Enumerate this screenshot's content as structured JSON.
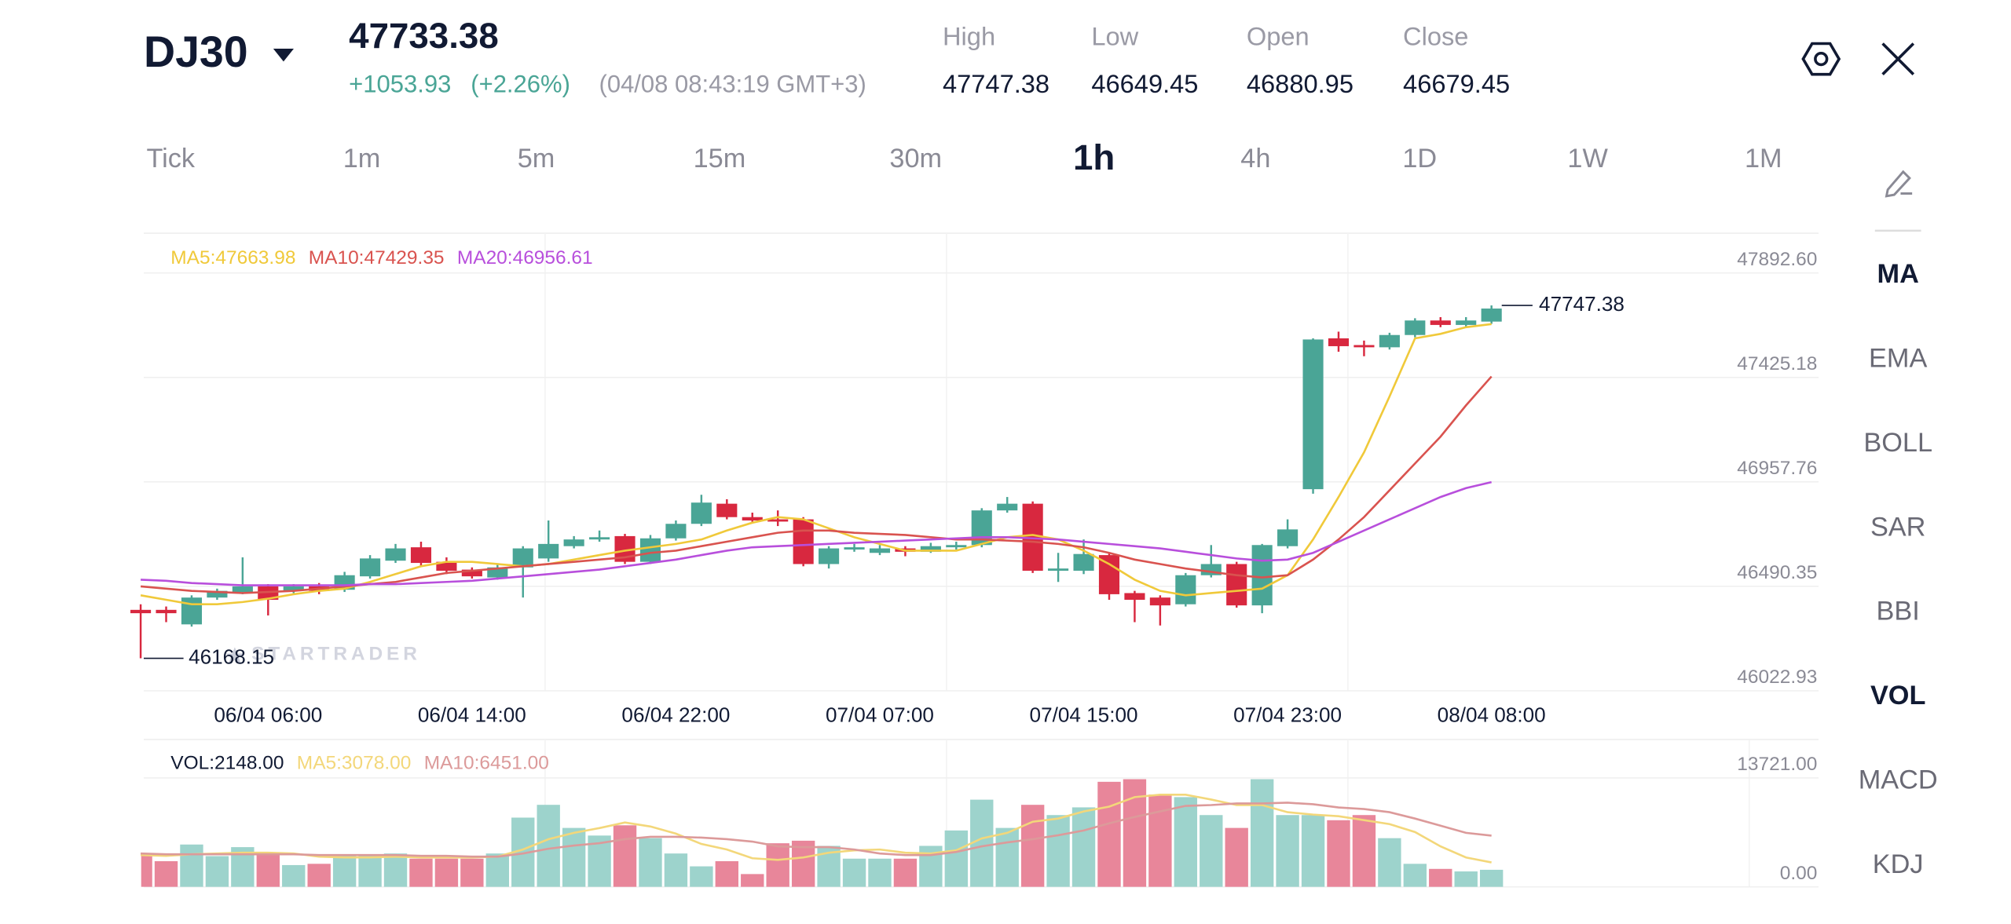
{
  "header": {
    "symbol": "DJ30",
    "price": "47733.38",
    "change": "+1053.93",
    "change_pct": "(+2.26%)",
    "timestamp": "(04/08 08:43:19 GMT+3)",
    "stats": [
      {
        "label": "High",
        "value": "47747.38"
      },
      {
        "label": "Low",
        "value": "46649.45"
      },
      {
        "label": "Open",
        "value": "46880.95"
      },
      {
        "label": "Close",
        "value": "46679.45"
      }
    ]
  },
  "timeframes": {
    "items": [
      "Tick",
      "1m",
      "5m",
      "15m",
      "30m",
      "1h",
      "4h",
      "1D",
      "1W",
      "1M"
    ],
    "active": "1h"
  },
  "indicators": {
    "items": [
      "MA",
      "EMA",
      "BOLL",
      "SAR",
      "BBI",
      "VOL",
      "MACD",
      "KDJ"
    ],
    "active": [
      "MA",
      "VOL"
    ]
  },
  "watermark": "STARTRADER",
  "chart_data": [
    {
      "type": "candlestick",
      "up_color": "#4aa596",
      "down_color": "#d8283f",
      "categories": [
        null,
        null,
        null,
        null,
        null,
        "06/04 06:00",
        null,
        null,
        null,
        null,
        null,
        null,
        null,
        "06/04 14:00",
        null,
        null,
        null,
        null,
        null,
        null,
        null,
        "06/04 22:00",
        null,
        null,
        null,
        null,
        null,
        null,
        null,
        "07/04 07:00",
        null,
        null,
        null,
        null,
        null,
        null,
        null,
        "07/04 15:00",
        null,
        null,
        null,
        null,
        null,
        null,
        null,
        "07/04 23:00",
        null,
        null,
        null,
        null,
        null,
        null,
        null,
        "08/04 08:00"
      ],
      "candles": [
        {
          "open": 46385,
          "high": 46410,
          "low": 46168.15,
          "close": 46370
        },
        {
          "open": 46385,
          "high": 46400,
          "low": 46330,
          "close": 46370
        },
        {
          "open": 46320,
          "high": 46450,
          "low": 46310,
          "close": 46440
        },
        {
          "open": 46440,
          "high": 46480,
          "low": 46430,
          "close": 46470
        },
        {
          "open": 46465,
          "high": 46620,
          "low": 46455,
          "close": 46490
        },
        {
          "open": 46490,
          "high": 46500,
          "low": 46360,
          "close": 46430
        },
        {
          "open": 46470,
          "high": 46500,
          "low": 46460,
          "close": 46490
        },
        {
          "open": 46490,
          "high": 46505,
          "low": 46455,
          "close": 46470
        },
        {
          "open": 46475,
          "high": 46555,
          "low": 46465,
          "close": 46540
        },
        {
          "open": 46535,
          "high": 46630,
          "low": 46525,
          "close": 46615
        },
        {
          "open": 46605,
          "high": 46680,
          "low": 46595,
          "close": 46660
        },
        {
          "open": 46665,
          "high": 46690,
          "low": 46580,
          "close": 46595
        },
        {
          "open": 46600,
          "high": 46620,
          "low": 46545,
          "close": 46560
        },
        {
          "open": 46565,
          "high": 46575,
          "low": 46525,
          "close": 46535
        },
        {
          "open": 46530,
          "high": 46590,
          "low": 46520,
          "close": 46575
        },
        {
          "open": 46575,
          "high": 46670,
          "low": 46440,
          "close": 46660
        },
        {
          "open": 46615,
          "high": 46785,
          "low": 46600,
          "close": 46680
        },
        {
          "open": 46670,
          "high": 46715,
          "low": 46660,
          "close": 46700
        },
        {
          "open": 46700,
          "high": 46740,
          "low": 46690,
          "close": 46710
        },
        {
          "open": 46715,
          "high": 46725,
          "low": 46590,
          "close": 46600
        },
        {
          "open": 46600,
          "high": 46720,
          "low": 46590,
          "close": 46705
        },
        {
          "open": 46705,
          "high": 46785,
          "low": 46695,
          "close": 46770
        },
        {
          "open": 46770,
          "high": 46900,
          "low": 46760,
          "close": 46865
        },
        {
          "open": 46860,
          "high": 46880,
          "low": 46790,
          "close": 46800
        },
        {
          "open": 46800,
          "high": 46820,
          "low": 46775,
          "close": 46785
        },
        {
          "open": 46790,
          "high": 46830,
          "low": 46760,
          "close": 46780
        },
        {
          "open": 46790,
          "high": 46800,
          "low": 46580,
          "close": 46590
        },
        {
          "open": 46590,
          "high": 46670,
          "low": 46570,
          "close": 46660
        },
        {
          "open": 46655,
          "high": 46680,
          "low": 46645,
          "close": 46665
        },
        {
          "open": 46640,
          "high": 46675,
          "low": 46630,
          "close": 46660
        },
        {
          "open": 46660,
          "high": 46670,
          "low": 46625,
          "close": 46645
        },
        {
          "open": 46645,
          "high": 46685,
          "low": 46640,
          "close": 46670
        },
        {
          "open": 46665,
          "high": 46690,
          "low": 46655,
          "close": 46675
        },
        {
          "open": 46675,
          "high": 46840,
          "low": 46665,
          "close": 46830
        },
        {
          "open": 46830,
          "high": 46890,
          "low": 46820,
          "close": 46860
        },
        {
          "open": 46860,
          "high": 46870,
          "low": 46550,
          "close": 46560
        },
        {
          "open": 46560,
          "high": 46640,
          "low": 46510,
          "close": 46570
        },
        {
          "open": 46560,
          "high": 46700,
          "low": 46545,
          "close": 46635
        },
        {
          "open": 46630,
          "high": 46640,
          "low": 46430,
          "close": 46455
        },
        {
          "open": 46460,
          "high": 46470,
          "low": 46330,
          "close": 46430
        },
        {
          "open": 46440,
          "high": 46450,
          "low": 46315,
          "close": 46405
        },
        {
          "open": 46410,
          "high": 46550,
          "low": 46400,
          "close": 46540
        },
        {
          "open": 46540,
          "high": 46675,
          "low": 46530,
          "close": 46590
        },
        {
          "open": 46590,
          "high": 46600,
          "low": 46395,
          "close": 46405
        },
        {
          "open": 46405,
          "high": 46680,
          "low": 46370,
          "close": 46675
        },
        {
          "open": 46670,
          "high": 46790,
          "low": 46660,
          "close": 46745
        },
        {
          "open": 46925,
          "high": 47600,
          "low": 46905,
          "close": 47595
        },
        {
          "open": 47600,
          "high": 47630,
          "low": 47540,
          "close": 47565
        },
        {
          "open": 47570,
          "high": 47590,
          "low": 47520,
          "close": 47560
        },
        {
          "open": 47560,
          "high": 47625,
          "low": 47550,
          "close": 47615
        },
        {
          "open": 47615,
          "high": 47690,
          "low": 47605,
          "close": 47680
        },
        {
          "open": 47680,
          "high": 47695,
          "low": 47650,
          "close": 47660
        },
        {
          "open": 47660,
          "high": 47695,
          "low": 47650,
          "close": 47680
        },
        {
          "open": 47675,
          "high": 47747.38,
          "low": 47665,
          "close": 47733.38
        }
      ],
      "legend": [
        "MA5:47663.98",
        "MA10:47429.35",
        "MA20:46956.61"
      ],
      "series": [
        {
          "color": "#f0c93a",
          "values": [
            46450,
            46430,
            46410,
            46410,
            46420,
            46435,
            46455,
            46470,
            46480,
            46510,
            46545,
            46580,
            46600,
            46600,
            46590,
            46580,
            46590,
            46610,
            46630,
            46650,
            46665,
            46680,
            46700,
            46740,
            46775,
            46800,
            46790,
            46750,
            46710,
            46680,
            46650,
            46650,
            46650,
            46680,
            46710,
            46720,
            46700,
            46650,
            46590,
            46520,
            46470,
            46450,
            46460,
            46470,
            46480,
            46540,
            46700,
            46890,
            47090,
            47340,
            47600,
            47620,
            47650,
            47663.98
          ]
        },
        {
          "color": "#d9534f",
          "values": [
            46490,
            46480,
            46470,
            46465,
            46460,
            46465,
            46470,
            46480,
            46490,
            46500,
            46510,
            46530,
            46550,
            46560,
            46570,
            46580,
            46590,
            46600,
            46610,
            46620,
            46640,
            46650,
            46670,
            46690,
            46710,
            46730,
            46740,
            46740,
            46730,
            46725,
            46720,
            46710,
            46700,
            46700,
            46695,
            46690,
            46680,
            46665,
            46640,
            46610,
            46590,
            46570,
            46555,
            46540,
            46530,
            46540,
            46610,
            46700,
            46800,
            46920,
            47040,
            47160,
            47300,
            47429.35
          ]
        },
        {
          "color": "#b84fdc",
          "values": [
            46520,
            46515,
            46505,
            46500,
            46495,
            46495,
            46495,
            46495,
            46495,
            46500,
            46500,
            46505,
            46510,
            46515,
            46525,
            46535,
            46545,
            46555,
            46565,
            46580,
            46595,
            46610,
            46630,
            46650,
            46665,
            46670,
            46675,
            46680,
            46685,
            46690,
            46695,
            46700,
            46705,
            46710,
            46710,
            46705,
            46700,
            46690,
            46680,
            46670,
            46660,
            46645,
            46630,
            46615,
            46605,
            46610,
            46640,
            46690,
            46740,
            46790,
            46840,
            46890,
            46930,
            46956.61
          ]
        }
      ],
      "max_marker": 47747.38,
      "min_marker": 46168.15,
      "ylim": [
        46022.93,
        48070.4
      ],
      "yticks": [
        {
          "value": 47892.6,
          "label": "47892.60"
        },
        47425.18,
        46957.76,
        46490.35,
        46022.93
      ],
      "grid": true
    },
    {
      "type": "bar",
      "up_color": "#9dd3cc",
      "down_color": "#e8869a",
      "values": [
        4200,
        3230,
        5330,
        3870,
        5000,
        4200,
        2740,
        2900,
        3870,
        3870,
        4200,
        3550,
        3550,
        3550,
        4200,
        8720,
        10330,
        7420,
        6460,
        7750,
        6130,
        4200,
        2580,
        3230,
        1610,
        5490,
        5810,
        5160,
        3550,
        3550,
        3550,
        5160,
        7100,
        10980,
        7420,
        10330,
        9040,
        10010,
        13230,
        13560,
        11620,
        11300,
        9040,
        7420,
        13560,
        9040,
        9040,
        8390,
        9040,
        6130,
        2900,
        2260,
        1940,
        2148
      ],
      "legend": [
        "VOL:2148.00",
        "MA5:3078.00",
        "MA10:6451.00"
      ],
      "series": [
        {
          "color": "#f3d77a",
          "values": [
            4000,
            3900,
            4100,
            4200,
            4300,
            4300,
            4200,
            3800,
            3700,
            3700,
            3800,
            3700,
            3700,
            3700,
            3800,
            4700,
            6000,
            6800,
            7400,
            8100,
            7600,
            6700,
            5400,
            4700,
            3600,
            3400,
            3700,
            4300,
            4600,
            4700,
            4300,
            4200,
            4600,
            6100,
            6800,
            8200,
            8600,
            9500,
            10100,
            11300,
            11600,
            11600,
            11000,
            10300,
            10300,
            9400,
            9100,
            8900,
            8400,
            7900,
            6900,
            5100,
            3700,
            3078
          ]
        },
        {
          "color": "#dc9a9a",
          "values": [
            4200,
            4100,
            4100,
            4100,
            4100,
            4100,
            4100,
            4000,
            4000,
            4000,
            4000,
            3900,
            3900,
            3800,
            3800,
            4200,
            4800,
            5200,
            5500,
            6000,
            6300,
            6300,
            6200,
            6000,
            5700,
            5100,
            5000,
            5000,
            4700,
            4200,
            4000,
            4000,
            4400,
            5100,
            5600,
            6000,
            6500,
            7100,
            8000,
            8800,
            9500,
            10200,
            10300,
            10500,
            10500,
            10600,
            10400,
            10000,
            9800,
            9400,
            8600,
            7700,
            6800,
            6451
          ]
        }
      ],
      "ylim": [
        0,
        13721
      ],
      "yticks": [
        {
          "value": 13721,
          "label": "13721.00"
        },
        {
          "value": 0,
          "label": "0.00"
        }
      ],
      "grid": true
    }
  ]
}
